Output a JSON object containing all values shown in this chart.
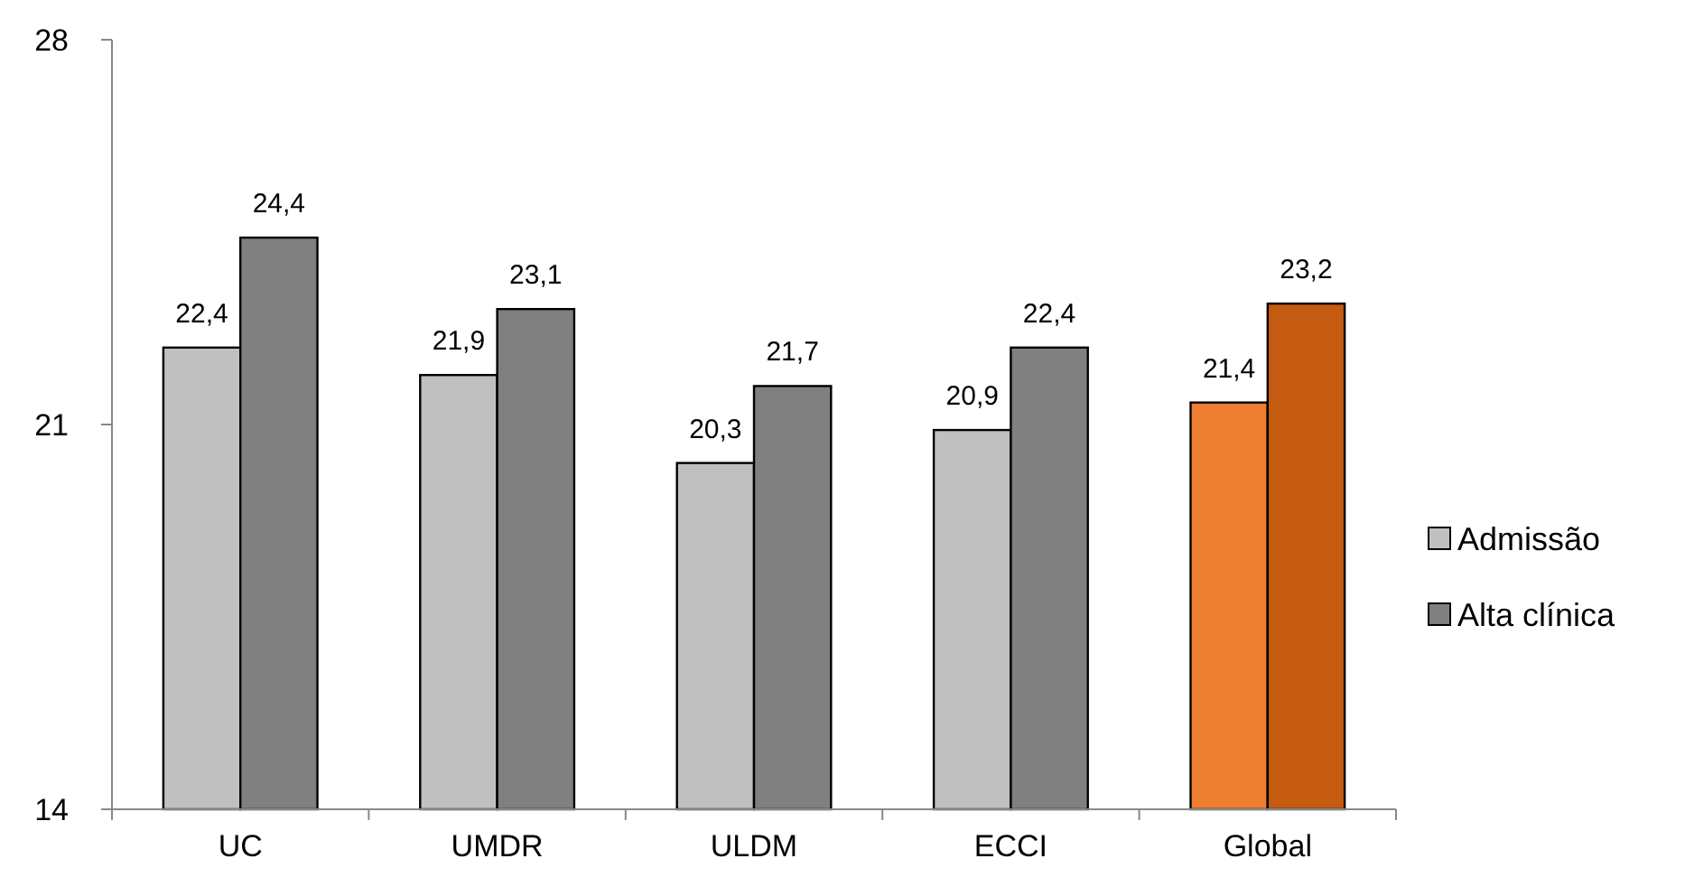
{
  "chart_data": {
    "type": "bar",
    "categories": [
      "UC",
      "UMDR",
      "ULDM",
      "ECCI",
      "Global"
    ],
    "series": [
      {
        "name": "Admissão",
        "color": "#c0c0c0",
        "colors": [
          "#c0c0c0",
          "#c0c0c0",
          "#c0c0c0",
          "#c0c0c0",
          "#ed7d31"
        ],
        "values": [
          22.4,
          21.9,
          20.3,
          20.9,
          21.4
        ],
        "value_labels": [
          "22,4",
          "21,9",
          "20,3",
          "20,9",
          "21,4"
        ]
      },
      {
        "name": "Alta clínica",
        "color": "#808080",
        "colors": [
          "#808080",
          "#808080",
          "#808080",
          "#808080",
          "#c55a11"
        ],
        "values": [
          24.4,
          23.1,
          21.7,
          22.4,
          23.2
        ],
        "value_labels": [
          "24,4",
          "23,1",
          "21,7",
          "22,4",
          "23,2"
        ]
      }
    ],
    "ylim": [
      14,
      28
    ],
    "yticks": [
      14,
      21,
      28
    ],
    "grid": false,
    "legend": "right"
  }
}
